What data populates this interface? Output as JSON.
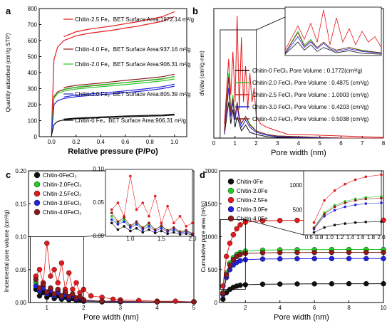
{
  "chart_data": [
    {
      "panel": "a",
      "type": "line",
      "xlabel": "Relative pressure (P/Po)",
      "ylabel": "Quantity adsorbed (cm³/g STP)",
      "xlim": [
        -0.1,
        1.1
      ],
      "ylim": [
        0,
        800
      ],
      "xticks": [
        "0.0",
        "0.2",
        "0.4",
        "0.6",
        "0.8",
        "1.0"
      ],
      "yticks": [
        "0",
        "100",
        "200",
        "300",
        "400",
        "500",
        "600",
        "700",
        "800"
      ],
      "series": [
        {
          "name": "Chitin-2.5 Fe",
          "label": "Chitin-2.5 Fe，BET Surface Area:1972.14 m²/g",
          "color": "#e41a1c",
          "x": [
            0,
            0.02,
            0.05,
            0.1,
            0.2,
            0.3,
            0.4,
            0.5,
            0.6,
            0.7,
            0.8,
            0.9,
            0.95,
            1.0
          ],
          "y": [
            40,
            480,
            560,
            600,
            630,
            645,
            655,
            665,
            678,
            690,
            705,
            720,
            735,
            750
          ]
        },
        {
          "name": "Chitin-4.0 Fe",
          "label": "Chitin-4.0 Fe，BET Surface Area:937.16 m²/g",
          "color": "#8b1a1a",
          "x": [
            0,
            0.02,
            0.05,
            0.1,
            0.2,
            0.3,
            0.4,
            0.5,
            0.6,
            0.7,
            0.8,
            0.9,
            1.0
          ],
          "y": [
            20,
            250,
            280,
            295,
            308,
            315,
            322,
            330,
            338,
            345,
            352,
            360,
            375
          ]
        },
        {
          "name": "Chitin-2.0 Fe",
          "label": "Chitin-2.0 Fe，BET Surface Area:906.31 m²/g",
          "color": "#22cc22",
          "x": [
            0,
            0.02,
            0.05,
            0.1,
            0.2,
            0.3,
            0.4,
            0.5,
            0.6,
            0.7,
            0.8,
            0.9,
            1.0
          ],
          "y": [
            20,
            240,
            270,
            285,
            298,
            305,
            312,
            318,
            325,
            332,
            340,
            348,
            360
          ]
        },
        {
          "name": "Chitin-3.0 Fe",
          "label": "Chitin-3.0 Fe，BET Surface Area:805.39 m²/g",
          "color": "#2222dd",
          "x": [
            0,
            0.02,
            0.05,
            0.1,
            0.2,
            0.3,
            0.4,
            0.5,
            0.6,
            0.7,
            0.8,
            0.9,
            1.0
          ],
          "y": [
            15,
            200,
            225,
            238,
            250,
            256,
            262,
            268,
            275,
            282,
            290,
            300,
            315
          ]
        },
        {
          "name": "Chitin-0 Fe",
          "label": "Chitin-0 Fe，BET Surface Area:906.31 m²/g",
          "color": "#111111",
          "x": [
            0,
            0.02,
            0.05,
            0.1,
            0.2,
            0.3,
            0.4,
            0.5,
            0.6,
            0.7,
            0.8,
            0.9,
            1.0
          ],
          "y": [
            10,
            75,
            95,
            105,
            112,
            115,
            118,
            121,
            124,
            126,
            128,
            130,
            135
          ]
        }
      ]
    },
    {
      "panel": "b",
      "type": "line",
      "xlabel": "Pore width (nm)",
      "ylabel": "dV/dw (cm³/g·nm)",
      "xlim": [
        0,
        8
      ],
      "xticks": [
        "0",
        "1",
        "2",
        "3",
        "4",
        "5",
        "6",
        "7",
        "8"
      ],
      "series": [
        {
          "name": "Chitin-0",
          "label": "Chitin-0 FeCl₃ Pore Volume :    0.1772(cm³/g)",
          "color": "#111111",
          "x": [
            0.5,
            0.7,
            0.8,
            0.9,
            1.0,
            1.1,
            1.2,
            1.3,
            1.5,
            1.7,
            2.0,
            2.5,
            3,
            4,
            6,
            8
          ],
          "y": [
            0.05,
            0.5,
            0.2,
            0.4,
            0.15,
            0.3,
            0.2,
            0.1,
            0.18,
            0.08,
            0.05,
            0.02,
            0.01,
            0.01,
            0,
            0
          ]
        },
        {
          "name": "Chitin-2.0",
          "label": "Chitin-2.0 FeCl₃ Pore Volume :  0.4875 (cm³/g)",
          "color": "#22cc22",
          "x": [
            0.5,
            0.7,
            0.8,
            0.9,
            1.0,
            1.1,
            1.2,
            1.3,
            1.5,
            1.7,
            2.0,
            2.5,
            3,
            4,
            6,
            8
          ],
          "y": [
            0.1,
            0.9,
            0.4,
            0.6,
            0.3,
            0.5,
            0.3,
            0.2,
            0.3,
            0.2,
            0.1,
            0.05,
            0.03,
            0.02,
            0,
            0
          ]
        },
        {
          "name": "Chitin-2.5",
          "label": "Chitin-2.5 FeCl₃ Pore Volume :  1.0003 (cm³/g)",
          "color": "#e41a1c",
          "x": [
            0.5,
            0.7,
            0.8,
            0.9,
            1.0,
            1.1,
            1.2,
            1.3,
            1.4,
            1.5,
            1.6,
            1.7,
            1.8,
            1.9,
            2.0,
            2.2,
            2.5,
            3,
            3.5,
            4,
            5,
            6,
            7,
            8
          ],
          "y": [
            0.2,
            1.1,
            0.6,
            1.2,
            0.5,
            1.7,
            0.4,
            1.4,
            0.5,
            1.0,
            0.4,
            0.9,
            0.5,
            0.7,
            0.3,
            0.2,
            0.15,
            0.1,
            0.05,
            0.05,
            0.04,
            0.03,
            0.02,
            0.01
          ]
        },
        {
          "name": "Chitin-3.0",
          "label": "Chitin-3.0 FeCl₃ Pore Volume :  0.4203 (cm³/g)",
          "color": "#2222dd",
          "x": [
            0.5,
            0.7,
            0.8,
            0.9,
            1.0,
            1.1,
            1.2,
            1.3,
            1.5,
            1.7,
            2.0,
            2.5,
            3,
            4,
            6,
            8
          ],
          "y": [
            0.08,
            0.7,
            0.3,
            0.5,
            0.25,
            0.45,
            0.25,
            0.15,
            0.25,
            0.15,
            0.08,
            0.04,
            0.02,
            0.01,
            0,
            0
          ]
        },
        {
          "name": "Chitin-4.0",
          "label": "Chitin-4.0 FeCl₃ Pore Volume :  0.5038 (cm³/g)",
          "color": "#8b1a1a",
          "x": [
            0.5,
            0.7,
            0.8,
            0.9,
            1.0,
            1.1,
            1.2,
            1.3,
            1.5,
            1.7,
            2.0,
            2.5,
            3,
            4,
            6,
            8
          ],
          "y": [
            0.1,
            0.85,
            0.35,
            0.55,
            0.3,
            0.5,
            0.3,
            0.2,
            0.3,
            0.18,
            0.1,
            0.05,
            0.03,
            0.02,
            0,
            0
          ]
        }
      ]
    },
    {
      "panel": "c",
      "type": "scatter",
      "xlabel": "Pore width (nm)",
      "ylabel": "Incremental pore volume (cm³/g)",
      "xlim": [
        0.5,
        5
      ],
      "ylim": [
        0,
        0.2
      ],
      "xticks": [
        "1",
        "2",
        "3",
        "4",
        "5"
      ],
      "yticks": [
        "0.00",
        "0.05",
        "0.10",
        "0.15",
        "0.20"
      ],
      "inset_yticks": [
        "0.00",
        "0.05",
        "0.10"
      ],
      "inset_xticks": [
        "1.0",
        "1.5",
        "2.0"
      ],
      "series": [
        {
          "name": "Chitin-0FeCl₃",
          "color": "#111111",
          "x": [
            0.7,
            0.8,
            0.9,
            1.0,
            1.1,
            1.2,
            1.3,
            1.4,
            1.5,
            1.6,
            1.7,
            1.8,
            1.9,
            2.0,
            2.5,
            3,
            4,
            5
          ],
          "y": [
            0.02,
            0.01,
            0.015,
            0.008,
            0.012,
            0.006,
            0.01,
            0.005,
            0.008,
            0.004,
            0.006,
            0.003,
            0.004,
            0.002,
            0.001,
            0.001,
            0.001,
            0.001
          ]
        },
        {
          "name": "Chitin-2.0FeCl₃",
          "color": "#22cc22",
          "x": [
            0.7,
            0.8,
            0.9,
            1.0,
            1.1,
            1.2,
            1.3,
            1.4,
            1.5,
            1.6,
            1.7,
            1.8,
            1.9,
            2.0,
            2.5,
            3,
            4,
            5
          ],
          "y": [
            0.03,
            0.02,
            0.025,
            0.015,
            0.02,
            0.012,
            0.018,
            0.01,
            0.015,
            0.008,
            0.012,
            0.006,
            0.008,
            0.004,
            0.002,
            0.002,
            0.001,
            0.001
          ]
        },
        {
          "name": "Chitin-2.5FeCl₃",
          "color": "#e41a1c",
          "x": [
            0.7,
            0.8,
            0.9,
            1.0,
            1.1,
            1.2,
            1.3,
            1.4,
            1.5,
            1.6,
            1.7,
            1.8,
            1.9,
            2.0,
            2.2,
            2.5,
            2.8,
            3,
            3.5,
            4,
            4.5,
            5
          ],
          "y": [
            0.04,
            0.05,
            0.03,
            0.09,
            0.04,
            0.05,
            0.03,
            0.06,
            0.02,
            0.045,
            0.02,
            0.03,
            0.015,
            0.02,
            0.01,
            0.008,
            0.005,
            0.004,
            0.003,
            0.002,
            0.002,
            0.001
          ]
        },
        {
          "name": "Chitin-3.0FeCl₃",
          "color": "#2222dd",
          "x": [
            0.7,
            0.8,
            0.9,
            1.0,
            1.1,
            1.2,
            1.3,
            1.4,
            1.5,
            1.6,
            1.7,
            1.8,
            1.9,
            2.0,
            2.5,
            3,
            4,
            5
          ],
          "y": [
            0.025,
            0.018,
            0.022,
            0.013,
            0.018,
            0.01,
            0.015,
            0.008,
            0.012,
            0.007,
            0.01,
            0.005,
            0.007,
            0.003,
            0.002,
            0.001,
            0.001,
            0.001
          ]
        },
        {
          "name": "Chitin-4.0FeCl₃",
          "color": "#8b1a1a",
          "x": [
            0.7,
            0.8,
            0.9,
            1.0,
            1.1,
            1.2,
            1.3,
            1.4,
            1.5,
            1.6,
            1.7,
            1.8,
            1.9,
            2.0,
            2.5,
            3,
            4,
            5
          ],
          "y": [
            0.035,
            0.022,
            0.028,
            0.016,
            0.022,
            0.013,
            0.02,
            0.01,
            0.016,
            0.009,
            0.013,
            0.007,
            0.009,
            0.004,
            0.002,
            0.002,
            0.001,
            0.001
          ]
        }
      ]
    },
    {
      "panel": "d",
      "type": "scatter",
      "xlabel": "Pore width (nm)",
      "ylabel": "Cumulative pore area (m²/g)",
      "xlim": [
        0.5,
        10
      ],
      "ylim": [
        0,
        2000
      ],
      "xticks": [
        "2",
        "4",
        "6",
        "8",
        "10"
      ],
      "yticks": [
        "0",
        "500",
        "1000",
        "1500",
        "2000"
      ],
      "inset_yticks": [
        "500",
        "1000"
      ],
      "inset_xticks": [
        "0.6",
        "0.8",
        "1.0",
        "1.2",
        "1.4",
        "1.6",
        "1.8",
        "2.0"
      ],
      "series": [
        {
          "name": "Chitin-0Fe",
          "color": "#111111",
          "x": [
            0.7,
            0.9,
            1.1,
            1.3,
            1.5,
            1.7,
            2.0,
            3,
            4,
            5,
            6,
            7,
            8,
            9,
            10
          ],
          "y": [
            50,
            150,
            200,
            230,
            250,
            262,
            270,
            278,
            280,
            282,
            283,
            284,
            285,
            285,
            285
          ]
        },
        {
          "name": "Chitin-2.0Fe",
          "color": "#22cc22",
          "x": [
            0.7,
            0.9,
            1.1,
            1.3,
            1.5,
            1.7,
            2.0,
            3,
            4,
            5,
            6,
            7,
            8,
            9,
            10
          ],
          "y": [
            150,
            450,
            600,
            680,
            730,
            760,
            780,
            795,
            800,
            802,
            803,
            804,
            805,
            805,
            805
          ]
        },
        {
          "name": "Chitin-2.5Fe",
          "color": "#e41a1c",
          "x": [
            0.7,
            0.9,
            1.1,
            1.3,
            1.5,
            1.7,
            2.0,
            3,
            4,
            5,
            6,
            7,
            8,
            9,
            10
          ],
          "y": [
            250,
            700,
            900,
            1030,
            1120,
            1180,
            1220,
            1240,
            1245,
            1248,
            1250,
            1250,
            1250,
            1250,
            1250
          ]
        },
        {
          "name": "Chitin-3.0Fe",
          "color": "#2222dd",
          "x": [
            0.7,
            0.9,
            1.1,
            1.3,
            1.5,
            1.7,
            2.0,
            3,
            4,
            5,
            6,
            7,
            8,
            9,
            10
          ],
          "y": [
            120,
            380,
            500,
            570,
            610,
            635,
            650,
            660,
            663,
            665,
            666,
            667,
            667,
            667,
            667
          ]
        },
        {
          "name": "Chitin-4.0Fe",
          "color": "#8b1a1a",
          "x": [
            0.7,
            0.9,
            1.1,
            1.3,
            1.5,
            1.7,
            2.0,
            3,
            4,
            5,
            6,
            7,
            8,
            9,
            10
          ],
          "y": [
            140,
            420,
            570,
            650,
            700,
            730,
            745,
            755,
            758,
            760,
            761,
            762,
            762,
            762,
            762
          ]
        }
      ]
    }
  ]
}
